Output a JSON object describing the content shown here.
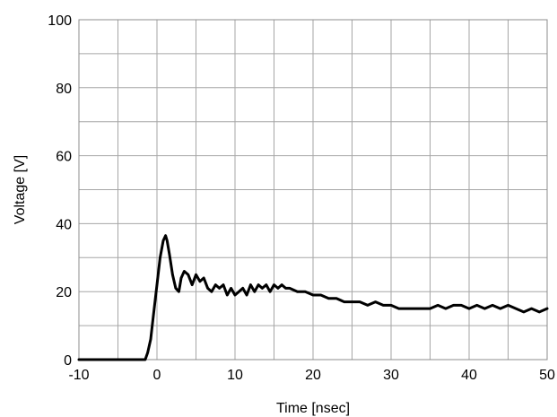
{
  "chart_data": {
    "type": "line",
    "title": "",
    "xlabel": "Time [nsec]",
    "ylabel": "Voltage [V]",
    "xlim": [
      -10,
      50
    ],
    "ylim": [
      0,
      100
    ],
    "xticks": [
      -10,
      0,
      10,
      20,
      30,
      40,
      50
    ],
    "yticks": [
      0,
      20,
      40,
      60,
      80,
      100
    ],
    "xtick_labels": [
      "-10",
      "0",
      "10",
      "20",
      "30",
      "40",
      "50"
    ],
    "ytick_labels": [
      "0",
      "20",
      "40",
      "60",
      "80",
      "100"
    ],
    "grid": true,
    "legend": false,
    "line_color": "#000000",
    "series": [
      {
        "x": [
          -10,
          -1.5,
          -1.2,
          -0.8,
          -0.5,
          0,
          0.4,
          0.8,
          1.1,
          1.3,
          1.6,
          2.0,
          2.4,
          2.8,
          3.1,
          3.5,
          4.0,
          4.5,
          5.0,
          5.5,
          6.0,
          6.5,
          7.0,
          7.5,
          8.0,
          8.5,
          9.0,
          9.5,
          10.0,
          10.5,
          11.0,
          11.5,
          12.0,
          12.5,
          13.0,
          13.5,
          14.0,
          14.5,
          15.0,
          15.5,
          16.0,
          16.5,
          17.0,
          18.0,
          19.0,
          20.0,
          21.0,
          22.0,
          23.0,
          24.0,
          25.0,
          26.0,
          27.0,
          28.0,
          29.0,
          30.0,
          31.0,
          32.0,
          33.0,
          34.0,
          35.0,
          36.0,
          37.0,
          38.0,
          39.0,
          40.0,
          41.0,
          42.0,
          43.0,
          44.0,
          45.0,
          46.0,
          47.0,
          48.0,
          49.0,
          50.0
        ],
        "y": [
          0,
          0,
          2,
          6,
          12,
          22,
          30,
          35,
          36.5,
          35,
          31,
          25,
          21,
          20,
          24,
          26,
          25,
          22,
          25,
          23,
          24,
          21,
          20,
          22,
          21,
          22,
          19,
          21,
          19,
          20,
          21,
          19,
          22,
          20,
          22,
          21,
          22,
          20,
          22,
          21,
          22,
          21,
          21,
          20,
          20,
          19,
          19,
          18,
          18,
          17,
          17,
          17,
          16,
          17,
          16,
          16,
          15,
          15,
          15,
          15,
          15,
          16,
          15,
          16,
          16,
          15,
          16,
          15,
          16,
          15,
          16,
          15,
          14,
          15,
          14,
          15
        ]
      }
    ]
  }
}
